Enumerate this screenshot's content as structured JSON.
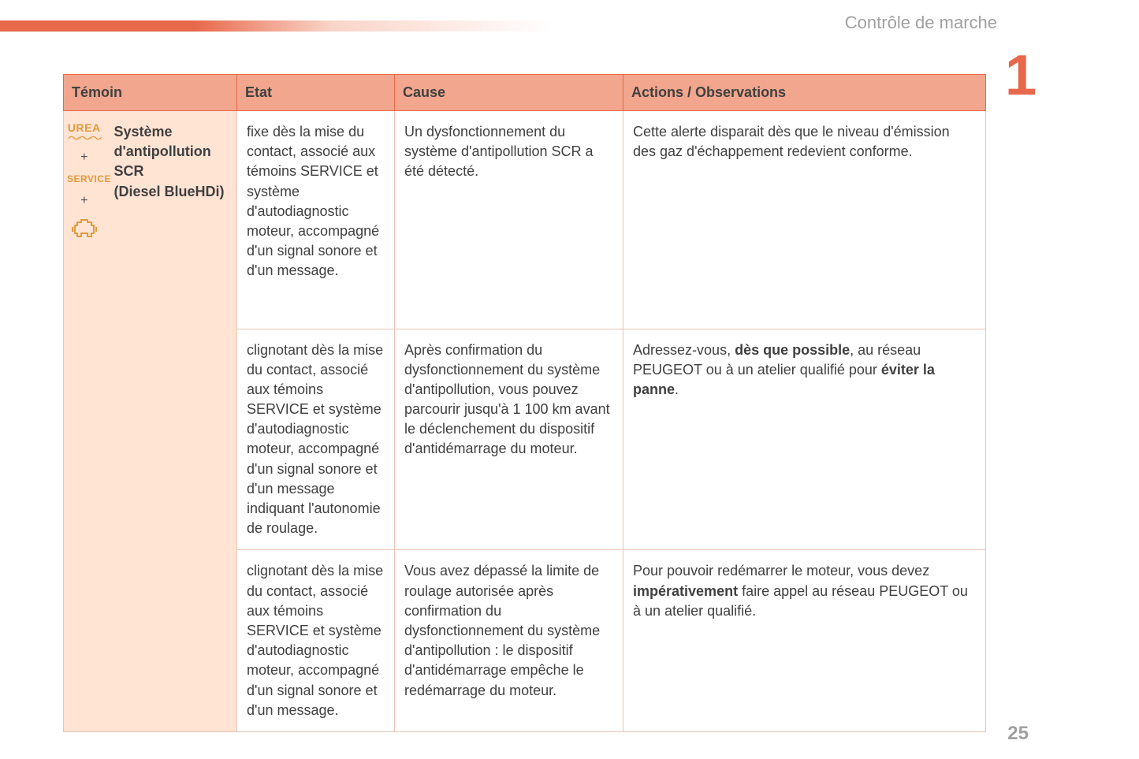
{
  "section_header": "Contrôle de marche",
  "chapter_marker": "1",
  "page_number": "25",
  "colors": {
    "accent": "#e8684b",
    "header_bg": "#f2a68d",
    "tint_bg": "#ffe4d4",
    "border_tint": "#e8c4b4",
    "icon_amber": "#e19a3a",
    "text": "#404040",
    "muted": "#a0a0a0"
  },
  "columns": {
    "temoin": "Témoin",
    "etat": "Etat",
    "cause": "Cause",
    "actions": "Actions / Observations"
  },
  "icons": {
    "urea_label": "UREA",
    "service_label": "SERVICE",
    "plus": "+"
  },
  "temoin_name": "Système d'antipollution SCR\n(Diesel BlueHDi)",
  "rows": [
    {
      "etat": "fixe dès la mise du contact, associé aux témoins SERVICE et système d'autodiagnostic moteur, accompagné d'un signal sonore et d'un message.",
      "cause": "Un dysfonctionnement du système d'antipollution SCR a été détecté.",
      "actions": "Cette alerte disparait dès que le niveau d'émission des gaz d'échappement redevient conforme."
    },
    {
      "etat": "clignotant dès la mise du contact, associé aux témoins SERVICE et système d'autodiagnostic moteur, accompagné d'un signal sonore et d'un message indiquant l'autonomie de roulage.",
      "cause": "Après confirmation du dysfonctionnement du système d'antipollution, vous pouvez parcourir jusqu'à 1 100 km avant le déclenchement du dispositif d'antidémarrage du moteur.",
      "actions": "Adressez-vous, <b>dès que possible</b>, au réseau PEUGEOT ou à un atelier qualifié pour <b>éviter la panne</b>."
    },
    {
      "etat": "clignotant dès la mise du contact, associé aux témoins SERVICE et système d'autodiagnostic moteur, accompagné d'un signal sonore et d'un message.",
      "cause": "Vous avez dépassé la limite de roulage autorisée après confirmation du dysfonctionnement du système d'antipollution : le dispositif d'antidémarrage empêche le redémarrage du moteur.",
      "actions": "Pour pouvoir redémarrer le moteur, vous devez <b>impérativement</b> faire appel au réseau PEUGEOT ou à un atelier qualifié."
    }
  ]
}
